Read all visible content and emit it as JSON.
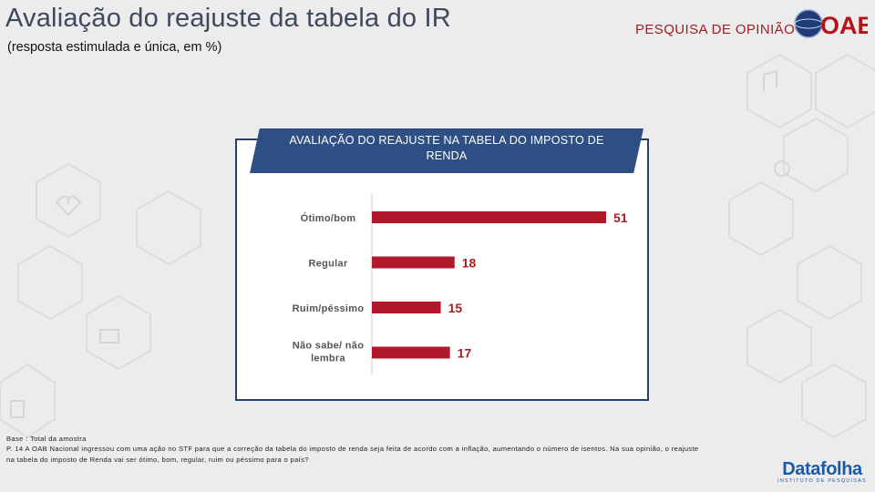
{
  "header": {
    "title": "Avaliação do reajuste da tabela do IR",
    "subtitle": "(resposta estimulada e única, em %)",
    "brand_text": "PESQUISA DE OPINIÃO",
    "logo_text": "OAB"
  },
  "chart_data": {
    "type": "bar",
    "orientation": "horizontal",
    "title": "AVALIAÇÃO DO REAJUSTE NA TABELA DO IMPOSTO DE RENDA",
    "categories": [
      "Ótimo/bom",
      "Regular",
      "Ruim/péssimo",
      "Não sabe/ não lembra"
    ],
    "values": [
      51,
      18,
      15,
      17
    ],
    "xlim": [
      0,
      60
    ],
    "xlabel": "",
    "ylabel": "",
    "grid": false,
    "legend": "none"
  },
  "footer": {
    "base": "Base : Total da amostra",
    "question_line1": "P. 14 A OAB Nacional ingressou com uma ação no STF para que a correção da tabela do imposto de renda seja feita de acordo com a inflação, aumentando o número de isentos. Na sua opinião, o reajuste",
    "question_line2": "na tabela do imposto de Renda vai ser ótimo, bom, regular, ruim ou péssimo para o país?"
  },
  "source": {
    "name": "Datafolha",
    "sub": "INSTITUTO DE PESQUISAS"
  },
  "colors": {
    "bar": "#b2182b",
    "value_label": "#a41e23",
    "category_label": "#555555",
    "banner": "#2e4f84",
    "frame": "#2a3f6e"
  }
}
